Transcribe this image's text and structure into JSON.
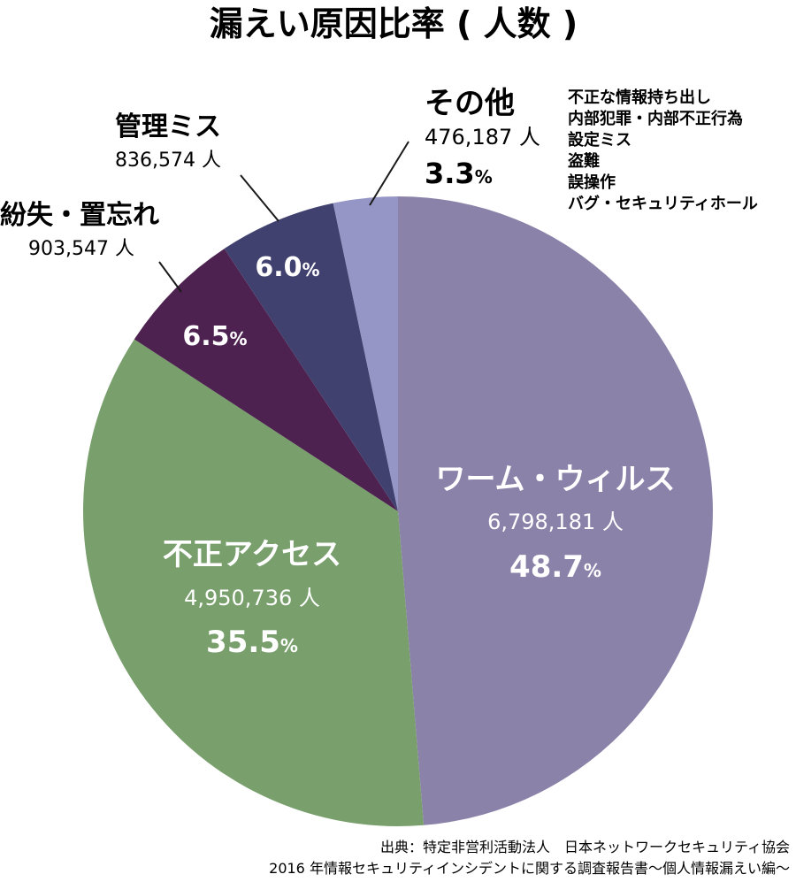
{
  "chart_data": {
    "type": "pie",
    "title": "漏えい原因比率 ( 人数 )",
    "start": "12 o'clock",
    "direction": "clockwise",
    "unit_count": "人",
    "unit_pct": "%",
    "slices": [
      {
        "id": "worm",
        "label": "ワーム・ウィルス",
        "count": "6,798,181",
        "value": 48.7,
        "pct": "48.7",
        "color": "#8b82a9"
      },
      {
        "id": "fusei",
        "label": "不正アクセス",
        "count": "4,950,736",
        "value": 35.5,
        "pct": "35.5",
        "color": "#789f6c"
      },
      {
        "id": "funshitsu",
        "label": "紛失・置忘れ",
        "count": "903,547",
        "value": 6.5,
        "pct": "6.5",
        "color": "#4d2250"
      },
      {
        "id": "kanri",
        "label": "管理ミス",
        "count": "836,574",
        "value": 6.0,
        "pct": "6.0",
        "color": "#41416f"
      },
      {
        "id": "other",
        "label": "その他",
        "count": "476,187",
        "value": 3.3,
        "pct": "3.3",
        "color": "#9696c6"
      }
    ],
    "other_details": [
      "不正な情報持ち出し",
      "内部犯罪・内部不正行為",
      "設定ミス",
      "盗難",
      "誤操作",
      "バグ・セキュリティホール"
    ]
  },
  "source": {
    "line1": "出典：特定非営利活動法人　日本ネットワークセキュリティ協会",
    "line2": "2016 年情報セキュリティインシデントに関する調査報告書〜個人情報漏えい編〜"
  }
}
